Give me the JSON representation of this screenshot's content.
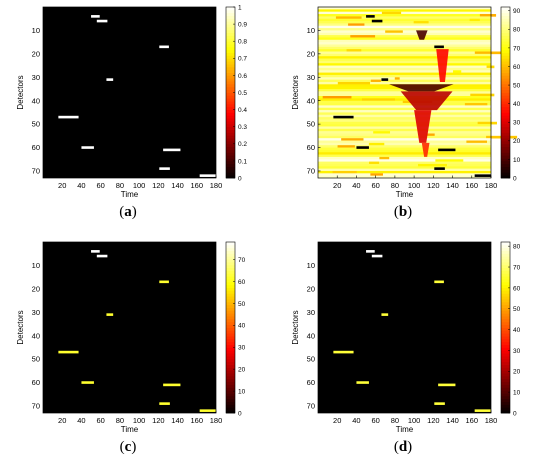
{
  "chart_data": [
    {
      "type": "heatmap",
      "panel_label": "a",
      "xlabel": "Time",
      "ylabel": "Detectors",
      "xlim": [
        0,
        180
      ],
      "ylim": [
        73,
        0
      ],
      "xticks": [
        20,
        40,
        60,
        80,
        100,
        120,
        140,
        160,
        180
      ],
      "yticks": [
        10,
        20,
        30,
        40,
        50,
        60,
        70
      ],
      "colorbar": {
        "min": 0,
        "max": 1,
        "ticks": [
          0,
          0.1,
          0.2,
          0.3,
          0.4,
          0.5,
          0.6,
          0.7,
          0.8,
          0.9,
          1
        ]
      },
      "colormap": "hot",
      "background": "low",
      "segments": [
        {
          "row": 4,
          "x0": 50,
          "x1": 59,
          "value": 1
        },
        {
          "row": 6,
          "x0": 56,
          "x1": 67,
          "value": 1
        },
        {
          "row": 17,
          "x0": 121,
          "x1": 131,
          "value": 1
        },
        {
          "row": 31,
          "x0": 66,
          "x1": 73,
          "value": 1
        },
        {
          "row": 47,
          "x0": 16,
          "x1": 37,
          "value": 1
        },
        {
          "row": 60,
          "x0": 40,
          "x1": 53,
          "value": 1
        },
        {
          "row": 61,
          "x0": 125,
          "x1": 143,
          "value": 1
        },
        {
          "row": 69,
          "x0": 121,
          "x1": 132,
          "value": 1
        },
        {
          "row": 72,
          "x0": 163,
          "x1": 180,
          "value": 1
        }
      ]
    },
    {
      "type": "heatmap",
      "panel_label": "b",
      "xlabel": "Time",
      "ylabel": "Detectors",
      "xlim": [
        0,
        180
      ],
      "ylim": [
        73,
        0
      ],
      "xticks": [
        20,
        40,
        60,
        80,
        100,
        120,
        140,
        160,
        180
      ],
      "yticks": [
        10,
        20,
        30,
        40,
        50,
        60,
        70
      ],
      "colorbar": {
        "min": 0,
        "max": 92,
        "ticks": [
          0,
          10,
          20,
          30,
          40,
          50,
          60,
          70,
          80,
          90
        ]
      },
      "colormap": "hot",
      "background": "high",
      "segments": [
        {
          "row": 4,
          "x0": 50,
          "x1": 59,
          "value": 0
        },
        {
          "row": 6,
          "x0": 56,
          "x1": 67,
          "value": 0
        },
        {
          "row": 17,
          "x0": 121,
          "x1": 131,
          "value": 0
        },
        {
          "row": 31,
          "x0": 66,
          "x1": 73,
          "value": 0
        },
        {
          "row": 47,
          "x0": 16,
          "x1": 37,
          "value": 0
        },
        {
          "row": 60,
          "x0": 40,
          "x1": 53,
          "value": 0
        },
        {
          "row": 61,
          "x0": 125,
          "x1": 143,
          "value": 0
        },
        {
          "row": 69,
          "x0": 121,
          "x1": 132,
          "value": 0
        },
        {
          "row": 72,
          "x0": 163,
          "x1": 180,
          "value": 0
        }
      ],
      "congestion_regions": [
        {
          "row0": 10,
          "row1": 14,
          "x0": 102,
          "x1": 114,
          "value": 10
        },
        {
          "row0": 33,
          "row1": 36,
          "x0": 74,
          "x1": 141,
          "value": 10
        },
        {
          "row0": 36,
          "row1": 44,
          "x0": 86,
          "x1": 140,
          "value": 25
        },
        {
          "row0": 44,
          "row1": 58,
          "x0": 100,
          "x1": 118,
          "value": 30
        },
        {
          "row0": 58,
          "row1": 64,
          "x0": 108,
          "x1": 116,
          "value": 40
        },
        {
          "row0": 18,
          "row1": 32,
          "x0": 123,
          "x1": 136,
          "value": 35
        }
      ]
    },
    {
      "type": "heatmap",
      "panel_label": "c",
      "xlabel": "Time",
      "ylabel": "Detectors",
      "xlim": [
        0,
        180
      ],
      "ylim": [
        73,
        0
      ],
      "xticks": [
        20,
        40,
        60,
        80,
        100,
        120,
        140,
        160,
        180
      ],
      "yticks": [
        10,
        20,
        30,
        40,
        50,
        60,
        70
      ],
      "colorbar": {
        "min": 0,
        "max": 78,
        "ticks": [
          0,
          10,
          20,
          30,
          40,
          50,
          60,
          70
        ]
      },
      "colormap": "hot",
      "background": "low",
      "segments": [
        {
          "row": 4,
          "x0": 50,
          "x1": 59,
          "value": 78
        },
        {
          "row": 6,
          "x0": 56,
          "x1": 67,
          "value": 78
        },
        {
          "row": 17,
          "x0": 121,
          "x1": 131,
          "value": 62
        },
        {
          "row": 31,
          "x0": 66,
          "x1": 73,
          "value": 62
        },
        {
          "row": 47,
          "x0": 16,
          "x1": 37,
          "value": 62
        },
        {
          "row": 60,
          "x0": 40,
          "x1": 53,
          "value": 62
        },
        {
          "row": 61,
          "x0": 125,
          "x1": 143,
          "value": 62
        },
        {
          "row": 69,
          "x0": 121,
          "x1": 132,
          "value": 62
        },
        {
          "row": 72,
          "x0": 163,
          "x1": 180,
          "value": 62
        }
      ]
    },
    {
      "type": "heatmap",
      "panel_label": "d",
      "xlabel": "Time",
      "ylabel": "Detectors",
      "xlim": [
        0,
        180
      ],
      "ylim": [
        73,
        0
      ],
      "xticks": [
        20,
        40,
        60,
        80,
        100,
        120,
        140,
        160,
        180
      ],
      "yticks": [
        10,
        20,
        30,
        40,
        50,
        60,
        70
      ],
      "colorbar": {
        "min": 0,
        "max": 82,
        "ticks": [
          0,
          10,
          20,
          30,
          40,
          50,
          60,
          70,
          80
        ]
      },
      "colormap": "hot",
      "background": "low",
      "segments": [
        {
          "row": 4,
          "x0": 50,
          "x1": 59,
          "value": 82
        },
        {
          "row": 6,
          "x0": 56,
          "x1": 67,
          "value": 82
        },
        {
          "row": 17,
          "x0": 121,
          "x1": 131,
          "value": 66
        },
        {
          "row": 31,
          "x0": 66,
          "x1": 73,
          "value": 66
        },
        {
          "row": 47,
          "x0": 16,
          "x1": 37,
          "value": 66
        },
        {
          "row": 60,
          "x0": 40,
          "x1": 53,
          "value": 66
        },
        {
          "row": 61,
          "x0": 125,
          "x1": 143,
          "value": 66
        },
        {
          "row": 69,
          "x0": 121,
          "x1": 132,
          "value": 66
        },
        {
          "row": 72,
          "x0": 163,
          "x1": 180,
          "value": 66
        }
      ]
    }
  ]
}
